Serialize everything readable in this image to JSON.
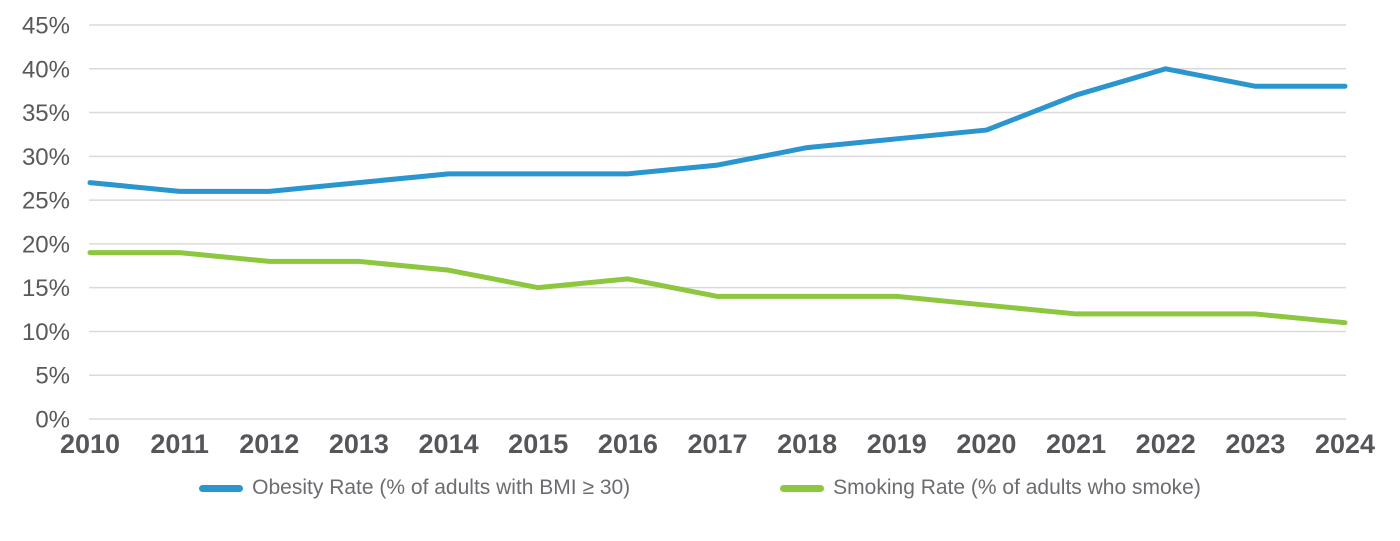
{
  "chart_data": {
    "type": "line",
    "title": "",
    "xlabel": "",
    "ylabel": "",
    "x": [
      "2010",
      "2011",
      "2012",
      "2013",
      "2014",
      "2015",
      "2016",
      "2017",
      "2018",
      "2019",
      "2020",
      "2021",
      "2022",
      "2023",
      "2024"
    ],
    "series": [
      {
        "name": "Obesity Rate (% of adults with BMI ≥ 30)",
        "color": "#2A95CE",
        "values": [
          27,
          26,
          26,
          27,
          28,
          28,
          28,
          29,
          31,
          32,
          33,
          37,
          40,
          38,
          38
        ]
      },
      {
        "name": "Smoking Rate (% of adults who smoke)",
        "color": "#8DC63F",
        "values": [
          19,
          19,
          18,
          18,
          17,
          15,
          16,
          14,
          14,
          14,
          13,
          12,
          12,
          12,
          11
        ]
      }
    ],
    "ylim": [
      0,
      45
    ],
    "ytick_step": 5,
    "ytick_suffix": "%",
    "grid": true,
    "legend_position": "bottom"
  },
  "styles": {
    "grid_color": "#dadada",
    "axis_text_color": "#58595b",
    "legend_text_color": "#6b6c6f",
    "background": "#ffffff",
    "line_width": 5
  }
}
